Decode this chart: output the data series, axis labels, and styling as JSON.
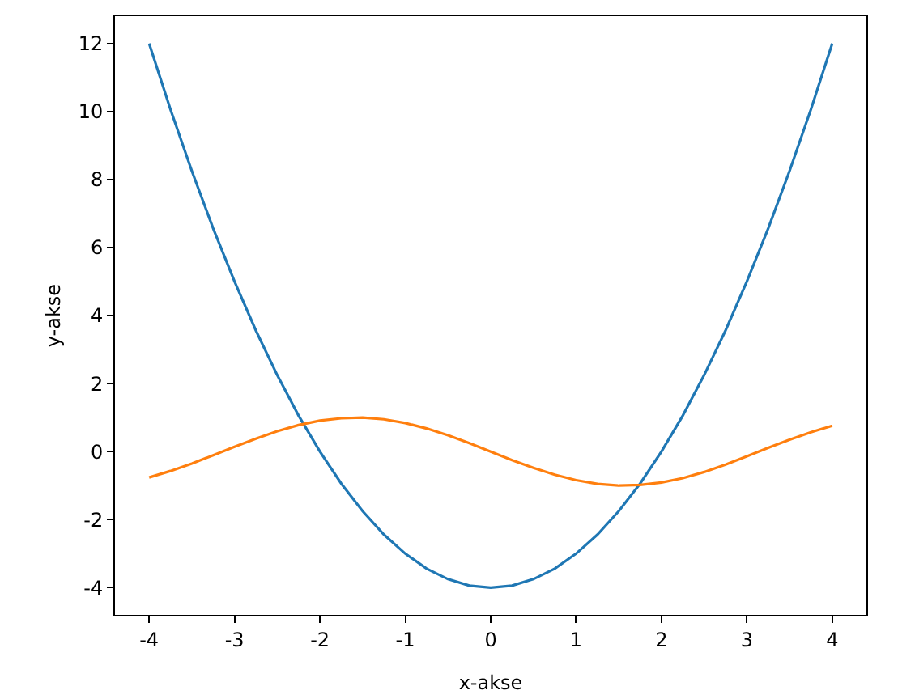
{
  "chart_data": {
    "type": "line",
    "xlabel": "x-akse",
    "ylabel": "y-akse",
    "x": [
      -4,
      -3.75,
      -3.5,
      -3.25,
      -3,
      -2.75,
      -2.5,
      -2.25,
      -2,
      -1.75,
      -1.5,
      -1.25,
      -1,
      -0.75,
      -0.5,
      -0.25,
      0,
      0.25,
      0.5,
      0.75,
      1,
      1.25,
      1.5,
      1.75,
      2,
      2.25,
      2.5,
      2.75,
      3,
      3.25,
      3.5,
      3.75,
      4
    ],
    "series": [
      {
        "color": "#1f77b4",
        "values": [
          12,
          10.06,
          8.25,
          6.56,
          5,
          3.56,
          2.25,
          1.06,
          0,
          -0.94,
          -1.75,
          -2.44,
          -3,
          -3.44,
          -3.75,
          -3.94,
          -4,
          -3.94,
          -3.75,
          -3.44,
          -3,
          -2.44,
          -1.75,
          -0.94,
          0,
          1.06,
          2.25,
          3.56,
          5,
          6.56,
          8.25,
          10.06,
          12
        ]
      },
      {
        "color": "#ff7f0e",
        "values": [
          -0.76,
          -0.57,
          -0.35,
          -0.11,
          0.14,
          0.38,
          0.6,
          0.78,
          0.91,
          0.98,
          1.0,
          0.95,
          0.84,
          0.68,
          0.48,
          0.25,
          0,
          -0.25,
          -0.48,
          -0.68,
          -0.84,
          -0.95,
          -1.0,
          -0.98,
          -0.91,
          -0.78,
          -0.6,
          -0.38,
          -0.14,
          0.11,
          0.35,
          0.57,
          0.76
        ]
      }
    ],
    "xlim": [
      -4.4,
      4.4
    ],
    "ylim": [
      -4.8,
      12.8
    ],
    "xticks": [
      -4,
      -3,
      -2,
      -1,
      0,
      1,
      2,
      3,
      4
    ],
    "yticks": [
      -4,
      -2,
      0,
      2,
      4,
      6,
      8,
      10,
      12
    ],
    "grid": false,
    "marker": "none",
    "line_style": "solid"
  }
}
